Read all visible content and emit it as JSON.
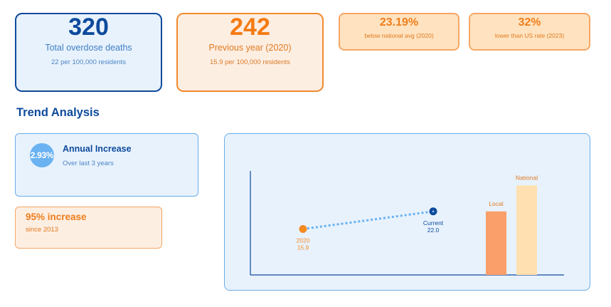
{
  "cards": {
    "total": {
      "value": "320",
      "label": "Total overdose deaths",
      "sub": "22 per 100,000 residents"
    },
    "previous": {
      "value": "242",
      "label": "Previous year (2020)",
      "sub": "15.9 per 100,000 residents"
    },
    "national_avg": {
      "value": "23.19%",
      "label": "below national avg (2020)"
    },
    "us_rate": {
      "value": "32%",
      "label": "lower than US rate (2023)"
    }
  },
  "trend": {
    "title": "Trend Analysis",
    "annual": {
      "value": "2.93%",
      "title": "Annual Increase",
      "sub": "Over last 3 years"
    },
    "increase": {
      "title": "95% increase",
      "sub": "since 2013"
    }
  },
  "colors": {
    "primary_blue": "#0d4a9c",
    "accent_orange": "#f47b12",
    "point_2020": "#f48a22",
    "point_current": "#0d4a9c",
    "trend_line": "#6ab2f2",
    "bar_local": "#fb9f6a",
    "bar_national": "#ffe0b0"
  },
  "chart_data": {
    "type": "line",
    "points": [
      {
        "year": "2020",
        "label": "2020",
        "value": 15.9,
        "value_label": "15.9"
      },
      {
        "year": "Current",
        "label": "Current",
        "value": 22.0,
        "value_label": "22.0"
      }
    ],
    "bars": [
      {
        "label": "Local",
        "value": 22.0
      },
      {
        "label": "National",
        "value": 31
      }
    ],
    "ylim": [
      0,
      36
    ]
  }
}
